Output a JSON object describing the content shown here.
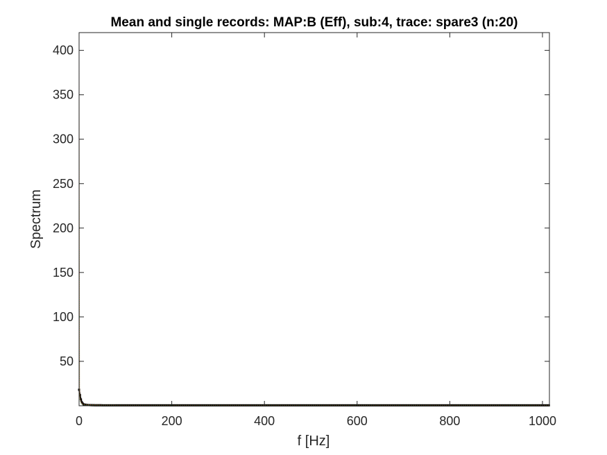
{
  "chart_data": {
    "type": "line",
    "title": "Mean and single records: MAP:B (Eff), sub:4, trace: spare3 (n:20)",
    "xlabel": "f [Hz]",
    "ylabel": "Spectrum",
    "xlim": [
      0,
      1015
    ],
    "ylim": [
      0,
      420
    ],
    "xticks": [
      0,
      200,
      400,
      600,
      800,
      1000
    ],
    "yticks": [
      50,
      100,
      150,
      200,
      250,
      300,
      350,
      400
    ],
    "xtick_labels": [
      "0",
      "200",
      "400",
      "600",
      "800",
      "1000"
    ],
    "ytick_labels": [
      "50",
      "100",
      "150",
      "200",
      "250",
      "300",
      "350",
      "400"
    ],
    "grid": false,
    "box": true,
    "series": [
      {
        "color": "#000000",
        "style": "markers",
        "x": [
          0,
          2,
          4,
          6,
          8,
          10,
          15,
          20,
          30,
          50,
          100,
          200,
          300,
          400,
          500,
          600,
          700,
          800,
          900,
          1000,
          1015
        ],
        "y": [
          18,
          12,
          7,
          4,
          2.5,
          1.5,
          1,
          0.8,
          0.6,
          0.5,
          0.5,
          0.5,
          0.5,
          0.5,
          0.5,
          0.5,
          0.5,
          0.5,
          0.5,
          0.5,
          0.5
        ]
      },
      {
        "color": "#d62728",
        "style": "dotted",
        "x": [
          0,
          1,
          2,
          5,
          10,
          20,
          50,
          100,
          200,
          400,
          600,
          800,
          1000,
          1015
        ],
        "y": [
          400,
          20,
          8,
          3,
          1.5,
          1,
          0.6,
          0.5,
          0.5,
          0.5,
          0.5,
          0.5,
          0.5,
          0.5
        ]
      },
      {
        "color": "#2ca02c",
        "style": "dotted",
        "x": [
          0,
          1,
          2,
          5,
          10,
          20,
          50,
          100,
          200,
          400,
          600,
          800,
          1000,
          1015
        ],
        "y": [
          380,
          15,
          6,
          2.5,
          1.2,
          0.9,
          0.6,
          0.5,
          0.5,
          0.5,
          0.5,
          0.5,
          0.5,
          0.5
        ]
      }
    ]
  }
}
